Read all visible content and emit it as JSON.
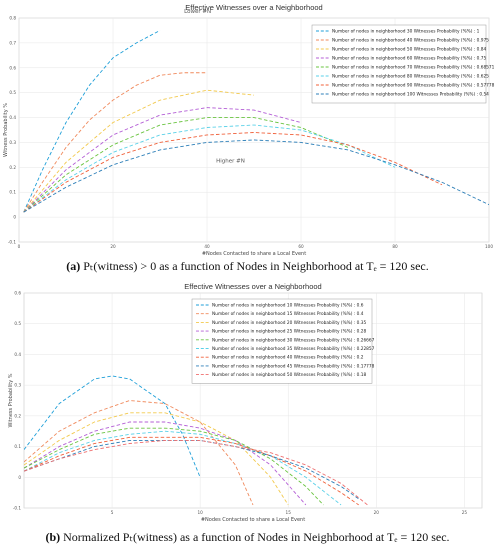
{
  "chart_data": [
    {
      "type": "line",
      "title": "Effective Witnesses over a Neighborhood",
      "xlabel": "#Nodes Contacted to share a Local Event",
      "ylabel": "Witness Probability %",
      "xlim": [
        0,
        100
      ],
      "ylim": [
        -0.1,
        0.8
      ],
      "xticks": [
        0,
        20,
        40,
        60,
        80,
        100
      ],
      "yticks": [
        -0.1,
        0,
        0.1,
        0.2,
        0.3,
        0.4,
        0.5,
        0.6,
        0.7,
        0.8
      ],
      "xtick_labels": [
        "0",
        "20",
        "40",
        "60",
        "80",
        "100"
      ],
      "ytick_labels": [
        "-0.1",
        "0",
        "0.1",
        "0.2",
        "0.3",
        "0.4",
        "0.5",
        "0.6",
        "0.7",
        "0.8"
      ],
      "grid": true,
      "legend_position": "top-right",
      "series": [
        {
          "name": "Number of nodes in neighborhood 30 Witnesses Probability (%%) : 1",
          "color": "#1f9fd8",
          "x": [
            1,
            5,
            10,
            15,
            20,
            25,
            30
          ],
          "y": [
            0.02,
            0.19,
            0.38,
            0.53,
            0.64,
            0.7,
            0.75
          ]
        },
        {
          "name": "Number of nodes in neighborhood 40 Witnesses Probability (%%) : 0.975",
          "color": "#f08a5d",
          "x": [
            1,
            5,
            10,
            15,
            20,
            25,
            30,
            35,
            40
          ],
          "y": [
            0.02,
            0.14,
            0.28,
            0.39,
            0.47,
            0.53,
            0.57,
            0.58,
            0.58
          ]
        },
        {
          "name": "Number of nodes in neighborhood 50 Witnesses Probability (%%) : 0.84",
          "color": "#f2c94c",
          "x": [
            1,
            10,
            20,
            30,
            40,
            50
          ],
          "y": [
            0.02,
            0.22,
            0.38,
            0.47,
            0.51,
            0.49
          ]
        },
        {
          "name": "Number of nodes in neighborhood 60 Witnesses Probability (%%) : 0.75",
          "color": "#b45fd6",
          "x": [
            1,
            10,
            20,
            30,
            40,
            50,
            60
          ],
          "y": [
            0.02,
            0.19,
            0.33,
            0.41,
            0.44,
            0.43,
            0.38
          ]
        },
        {
          "name": "Number of nodes in neighborhood 70 Witnesses Probability (%%) : 0.68571",
          "color": "#6ac440",
          "x": [
            1,
            10,
            20,
            30,
            40,
            50,
            60,
            70
          ],
          "y": [
            0.02,
            0.17,
            0.29,
            0.37,
            0.4,
            0.4,
            0.36,
            0.28
          ]
        },
        {
          "name": "Number of nodes in neighborhood 80 Witnesses Probability (%%) : 0.625",
          "color": "#5ad1e8",
          "x": [
            1,
            10,
            20,
            30,
            40,
            50,
            60,
            70,
            80
          ],
          "y": [
            0.02,
            0.15,
            0.26,
            0.33,
            0.36,
            0.37,
            0.35,
            0.29,
            0.2
          ]
        },
        {
          "name": "Number of nodes in neighborhood 90 Witnesses Probability (%%) : 0.57778",
          "color": "#f0603a",
          "x": [
            1,
            10,
            20,
            30,
            40,
            50,
            60,
            70,
            80,
            90
          ],
          "y": [
            0.02,
            0.14,
            0.24,
            0.3,
            0.33,
            0.34,
            0.33,
            0.29,
            0.22,
            0.13
          ]
        },
        {
          "name": "Number of nodes in neighborhood 100 Witnesses Probability (%%) : 0.54",
          "color": "#2d7fb8",
          "x": [
            1,
            10,
            20,
            30,
            40,
            50,
            60,
            70,
            80,
            90,
            100
          ],
          "y": [
            0.02,
            0.12,
            0.21,
            0.27,
            0.3,
            0.31,
            0.3,
            0.27,
            0.21,
            0.14,
            0.05
          ]
        }
      ],
      "annotations": [
        {
          "text": "Lower #N",
          "x": 38,
          "y": 0.82
        },
        {
          "text": "Higher #N",
          "x": 45,
          "y": 0.22
        }
      ],
      "caption": {
        "label": "(a)",
        "text": "Pₜ(witness) > 0 as a function of Nodes in Neighborhood at Tₑ = 120 sec."
      }
    },
    {
      "type": "line",
      "title": "Effective Witnesses over a Neighborhood",
      "xlabel": "#Nodes Contacted to share a Local Event",
      "ylabel": "Witness Probability %",
      "xlim": [
        0,
        26
      ],
      "ylim": [
        -0.1,
        0.6
      ],
      "xticks": [
        5,
        10,
        15,
        20,
        25
      ],
      "yticks": [
        -0.1,
        0,
        0.1,
        0.2,
        0.3,
        0.4,
        0.5,
        0.6
      ],
      "xtick_labels": [
        "5",
        "10",
        "15",
        "20",
        "25"
      ],
      "ytick_labels": [
        "-0.1",
        "0",
        "0.1",
        "0.2",
        "0.3",
        "0.4",
        "0.5",
        "0.6"
      ],
      "grid": true,
      "legend_position": "top-center",
      "series": [
        {
          "name": "Number of nodes in neighborhood 10 Witnesses Probability (%%) : 0.6",
          "color": "#1f9fd8",
          "x": [
            0,
            2,
            4,
            5,
            6,
            8,
            9,
            10
          ],
          "y": [
            0.09,
            0.24,
            0.32,
            0.33,
            0.32,
            0.24,
            0.14,
            0.0
          ]
        },
        {
          "name": "Number of nodes in neighborhood 15 Witnesses Probability (%%) : 0.4",
          "color": "#f08a5d",
          "x": [
            0,
            2,
            4,
            6,
            8,
            10,
            12,
            13
          ],
          "y": [
            0.05,
            0.15,
            0.21,
            0.25,
            0.24,
            0.18,
            0.04,
            -0.09
          ]
        },
        {
          "name": "Number of nodes in neighborhood 20 Witnesses Probability (%%) : 0.35",
          "color": "#f2c94c",
          "x": [
            0,
            2,
            4,
            6,
            8,
            10,
            12,
            14,
            15
          ],
          "y": [
            0.04,
            0.12,
            0.18,
            0.21,
            0.21,
            0.18,
            0.12,
            0.0,
            -0.09
          ]
        },
        {
          "name": "Number of nodes in neighborhood 25 Witnesses Probability (%%) : 0.28",
          "color": "#b45fd6",
          "x": [
            0,
            2,
            4,
            6,
            8,
            10,
            12,
            14,
            16
          ],
          "y": [
            0.03,
            0.1,
            0.15,
            0.18,
            0.18,
            0.16,
            0.12,
            0.04,
            -0.09
          ]
        },
        {
          "name": "Number of nodes in neighborhood 30 Witnesses Probability (%%) : 0.26667",
          "color": "#6ac440",
          "x": [
            0,
            2,
            4,
            6,
            8,
            10,
            12,
            14,
            16,
            17
          ],
          "y": [
            0.03,
            0.09,
            0.14,
            0.16,
            0.16,
            0.15,
            0.12,
            0.06,
            -0.03,
            -0.09
          ]
        },
        {
          "name": "Number of nodes in neighborhood 35 Witnesses Probability (%%) : 0.22857",
          "color": "#5ad1e8",
          "x": [
            0,
            2,
            4,
            6,
            8,
            10,
            12,
            14,
            16,
            18
          ],
          "y": [
            0.02,
            0.08,
            0.12,
            0.14,
            0.15,
            0.14,
            0.11,
            0.07,
            0.0,
            -0.09
          ]
        },
        {
          "name": "Number of nodes in neighborhood 40 Witnesses Probability (%%) : 0.2",
          "color": "#f0603a",
          "x": [
            0,
            2,
            4,
            6,
            8,
            10,
            12,
            14,
            16,
            18,
            19
          ],
          "y": [
            0.02,
            0.07,
            0.11,
            0.13,
            0.13,
            0.13,
            0.11,
            0.07,
            0.02,
            -0.05,
            -0.09
          ]
        },
        {
          "name": "Number of nodes in neighborhood 45 Witnesses Probability (%%) : 0.17778",
          "color": "#2d7fb8",
          "x": [
            0,
            2,
            4,
            6,
            8,
            10,
            12,
            14,
            16,
            18,
            19
          ],
          "y": [
            0.02,
            0.06,
            0.1,
            0.12,
            0.12,
            0.12,
            0.1,
            0.07,
            0.03,
            -0.03,
            -0.07
          ]
        },
        {
          "name": "Number of nodes in neighborhood 50 Witnesses Probability (%%) : 0.18",
          "color": "#ef6f6f",
          "x": [
            0,
            2,
            4,
            6,
            8,
            10,
            12,
            14,
            16,
            18,
            19.5
          ],
          "y": [
            0.02,
            0.06,
            0.09,
            0.11,
            0.12,
            0.12,
            0.1,
            0.08,
            0.04,
            -0.02,
            -0.09
          ]
        }
      ],
      "caption": {
        "label": "(b)",
        "text": "Normalized Pₜ(witness) as a function of Nodes in Neighborhood at Tₑ = 120 sec."
      }
    }
  ]
}
